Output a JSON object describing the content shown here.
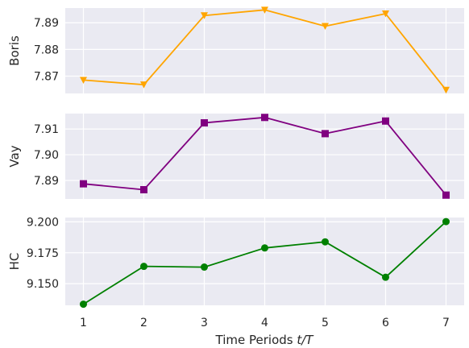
{
  "chart_data": [
    {
      "type": "line",
      "ylabel": "Boris",
      "x": [
        1,
        2,
        3,
        4,
        5,
        6,
        7
      ],
      "series": [
        {
          "values": [
            7.8685,
            7.8668,
            7.8927,
            7.8948,
            7.8887,
            7.8934,
            7.8648
          ],
          "color": "#FFA500",
          "marker": "triangle-down"
        }
      ],
      "ylim": [
        7.8635,
        7.8955
      ],
      "yticks": [
        7.87,
        7.88,
        7.89
      ],
      "ytick_labels": [
        "7.87",
        "7.88",
        "7.89"
      ],
      "xticks": [
        1,
        2,
        3,
        4,
        5,
        6,
        7
      ],
      "xtick_labels": [],
      "grid": true
    },
    {
      "type": "line",
      "ylabel": "Vay",
      "x": [
        1,
        2,
        3,
        4,
        5,
        6,
        7
      ],
      "series": [
        {
          "values": [
            7.8887,
            7.8864,
            7.9124,
            7.9145,
            7.9082,
            7.9131,
            7.8843
          ],
          "color": "#800080",
          "marker": "square"
        }
      ],
      "ylim": [
        7.8828,
        7.916
      ],
      "yticks": [
        7.89,
        7.9,
        7.91
      ],
      "ytick_labels": [
        "7.89",
        "7.90",
        "7.91"
      ],
      "xticks": [
        1,
        2,
        3,
        4,
        5,
        6,
        7
      ],
      "xtick_labels": [],
      "grid": true
    },
    {
      "type": "line",
      "ylabel": "HC",
      "xlabel_text": "Time Periods ",
      "xlabel_var": "t/T",
      "x": [
        1,
        2,
        3,
        4,
        5,
        6,
        7
      ],
      "series": [
        {
          "values": [
            9.1334,
            9.164,
            9.1634,
            9.1789,
            9.1838,
            9.1552,
            9.2002
          ],
          "color": "#008000",
          "marker": "circle"
        }
      ],
      "ylim": [
        9.1325,
        9.2035
      ],
      "yticks": [
        9.15,
        9.175,
        9.2
      ],
      "ytick_labels": [
        "9.150",
        "9.175",
        "9.200"
      ],
      "xticks": [
        1,
        2,
        3,
        4,
        5,
        6,
        7
      ],
      "xtick_labels": [
        "1",
        "2",
        "3",
        "4",
        "5",
        "6",
        "7"
      ],
      "grid": true
    }
  ],
  "style": {
    "panel_background": "#EAEAF2",
    "grid_color": "#FFFFFF"
  }
}
